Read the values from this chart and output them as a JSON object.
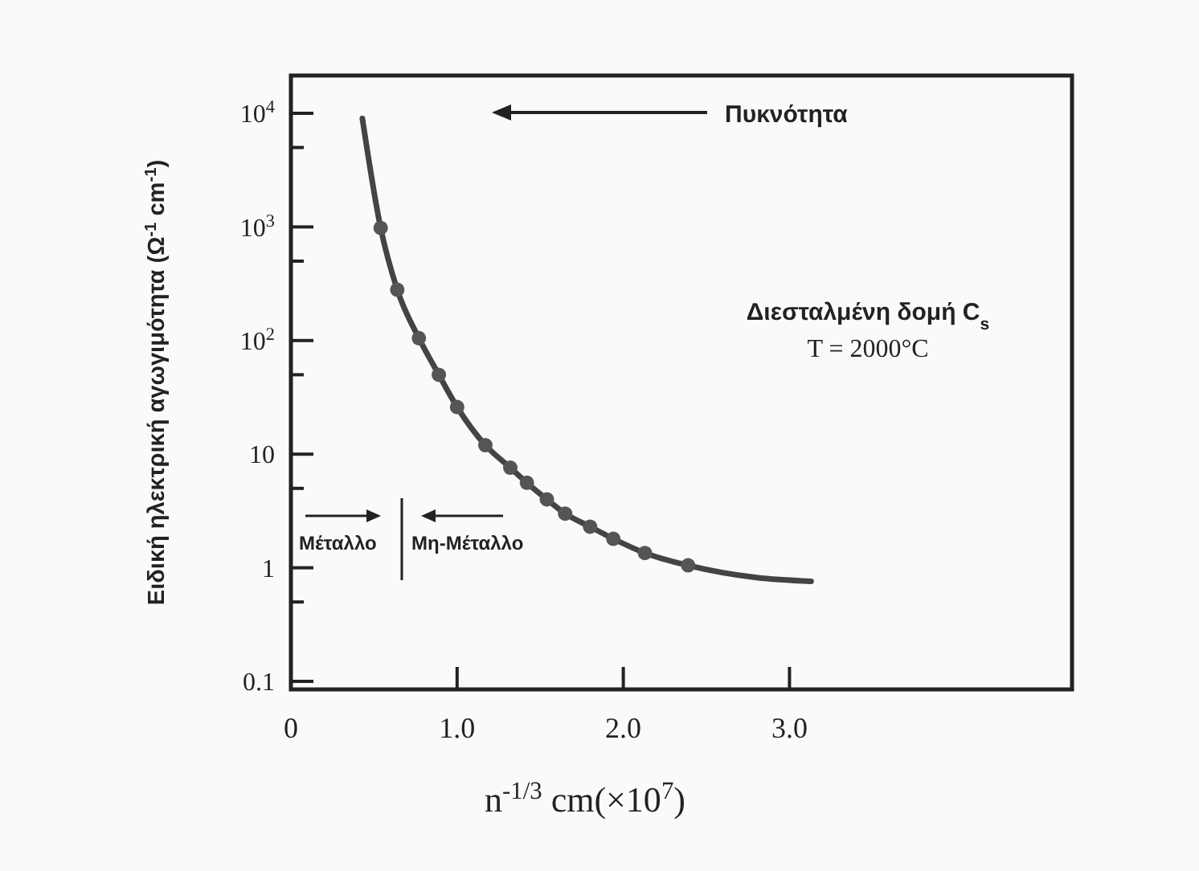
{
  "chart_data": {
    "type": "line",
    "xlabel": "n$^{-1/3}$ cm(×10$^{7}$)",
    "ylabel": "Ειδική ηλεκτρική αγωγιμότητα (Ω$^{-1}$ cm$^{-1}$)",
    "annotations": [
      "Πυκνότητα",
      "Διεσταλμένη δομή C$_{s}$",
      "T = 2000°C",
      "Μέταλλο",
      "Μη-Μέταλλο"
    ],
    "log": "y",
    "xlim": [
      0,
      4.7
    ],
    "ylim": [
      0.085,
      21500
    ],
    "xticks": [
      0,
      {
        "value": 1,
        "label": "1.0"
      },
      {
        "value": 2,
        "label": "2.0"
      },
      {
        "value": 3,
        "label": "3.0"
      }
    ],
    "yticks": [
      0.1,
      {
        "value": 0.5,
        "label": null
      },
      1,
      {
        "value": 5,
        "label": null
      },
      10,
      {
        "value": 50,
        "label": null
      },
      {
        "value": 100,
        "label": "10$^{2}$"
      },
      {
        "value": 500,
        "label": null
      },
      {
        "value": 1000,
        "label": "10$^{3}$"
      },
      {
        "value": 5000,
        "label": null
      },
      {
        "value": 10000,
        "label": "10$^{4}$"
      }
    ],
    "grid": false,
    "series": [
      {
        "marker": "none",
        "color": "#444444",
        "x": [
          0.43,
          0.54,
          0.64,
          0.77,
          0.89,
          1.0,
          1.17,
          1.32,
          1.42,
          1.54,
          1.65,
          1.8,
          1.94,
          2.13,
          2.39,
          2.8,
          3.13
        ],
        "values": [
          9000,
          980,
          280,
          105,
          50,
          26,
          12,
          7.6,
          5.6,
          4.0,
          3.0,
          2.3,
          1.8,
          1.35,
          1.05,
          0.82,
          0.76
        ]
      },
      {
        "type": "scatter",
        "marker": "circle",
        "color": "#555555",
        "x": [
          0.54,
          0.64,
          0.77,
          0.89,
          1.0,
          1.17,
          1.32,
          1.42,
          1.54,
          1.65,
          1.8,
          1.94,
          2.13,
          2.39
        ],
        "values": [
          980,
          280,
          105,
          50,
          26,
          12,
          7.6,
          5.6,
          4.0,
          3.0,
          2.3,
          1.8,
          1.35,
          1.05
        ]
      }
    ]
  }
}
